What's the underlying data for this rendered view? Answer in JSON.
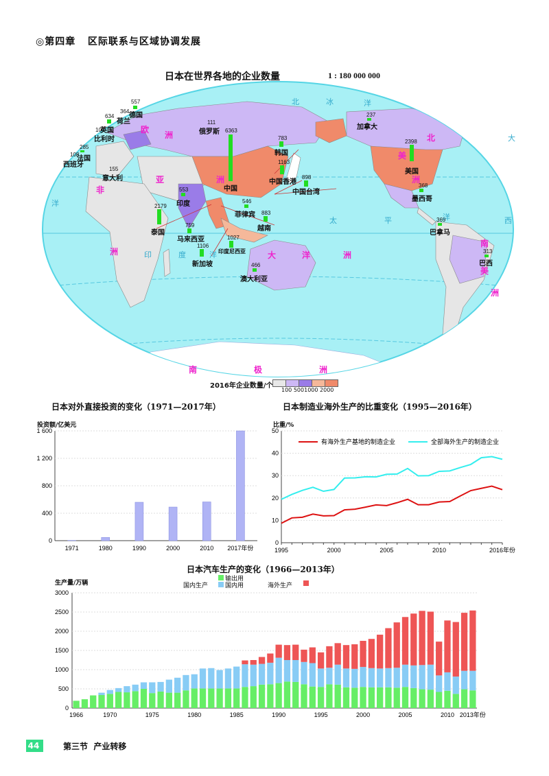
{
  "header": {
    "chapter_marker": "◎",
    "chapter": "第四章",
    "chapter_title": "区际联系与区域协调发展"
  },
  "map": {
    "title": "日本在世界各地的企业数量",
    "scale": "1 : 180 000 000",
    "countries": [
      {
        "name": "德国",
        "value": "557"
      },
      {
        "name": "荷兰",
        "value": "364"
      },
      {
        "name": "英国",
        "value": "634"
      },
      {
        "name": "比利时",
        "value": "104"
      },
      {
        "name": "法国",
        "value": "285"
      },
      {
        "name": "西班牙",
        "value": "108"
      },
      {
        "name": "意大利",
        "value": "155"
      },
      {
        "name": "俄罗斯",
        "value": "111"
      },
      {
        "name": "中国",
        "value": "6363"
      },
      {
        "name": "韩国",
        "value": "783"
      },
      {
        "name": "中国香港",
        "value": "1163"
      },
      {
        "name": "中国台湾",
        "value": "898"
      },
      {
        "name": "印度",
        "value": "553"
      },
      {
        "name": "泰国",
        "value": "2179"
      },
      {
        "name": "菲律宾",
        "value": "546"
      },
      {
        "name": "越南",
        "value": "883"
      },
      {
        "name": "马来西亚",
        "value": "759"
      },
      {
        "name": "印度尼西亚",
        "value": "1027"
      },
      {
        "name": "新加坡",
        "value": "1106"
      },
      {
        "name": "澳大利亚",
        "value": "466"
      },
      {
        "name": "加拿大",
        "value": "237"
      },
      {
        "name": "美国",
        "value": "2398"
      },
      {
        "name": "墨西哥",
        "value": "368"
      },
      {
        "name": "巴拿马",
        "value": "369"
      },
      {
        "name": "巴西",
        "value": "313"
      }
    ],
    "continents": {
      "europe": [
        "欧",
        "洲"
      ],
      "asia": [
        "亚",
        "洲"
      ],
      "africa": [
        "非",
        "洲"
      ],
      "north_america": [
        "北",
        "美",
        "洲"
      ],
      "south_america": [
        "南",
        "美",
        "洲"
      ],
      "oceania": [
        "大",
        "洋",
        "洲"
      ],
      "antarctica": [
        "南",
        "极",
        "洲"
      ]
    },
    "oceans": {
      "arctic": [
        "北",
        "冰",
        "洋"
      ],
      "pacific": [
        "太",
        "平",
        "洋"
      ],
      "atlantic": [
        "大",
        "西",
        "洋"
      ],
      "indian": [
        "印",
        "度",
        "洋"
      ]
    },
    "legend": {
      "label": "2016年企业数量/个",
      "ticks": [
        "100",
        "500",
        "1000",
        "2000"
      ],
      "colors": [
        "#e8e8e8",
        "#cdb8f5",
        "#9a7ce8",
        "#f5b89a",
        "#f08a6a"
      ]
    },
    "colors": {
      "ocean": "#a8f0f5",
      "land": "#e6e6e6",
      "purple": "#cdb8f5",
      "orange": "#f08a6a",
      "bar": "#22dd22"
    }
  },
  "chart_data": [
    {
      "type": "bar",
      "title": "日本对外直接投资的变化（1971—2017年）",
      "ylabel": "投资额/亿美元",
      "xlabel": "年份",
      "categories": [
        "1971",
        "1980",
        "1990",
        "2000",
        "2010",
        "2017"
      ],
      "values": [
        4,
        48,
        560,
        490,
        565,
        1600
      ],
      "ylim": [
        0,
        1600
      ],
      "yticks": [
        "0",
        "400",
        "800",
        "1 200",
        "1 600"
      ],
      "xtick_labels": [
        "1971",
        "1980",
        "1990",
        "2000",
        "2010",
        "2017年份"
      ],
      "bar_color": "#b0b4f5"
    },
    {
      "type": "line",
      "title": "日本制造业海外生产的比重变化（1995—2016年）",
      "ylabel": "比重/%",
      "xlabel": "年份",
      "x": [
        1995,
        1996,
        1997,
        1998,
        1999,
        2000,
        2001,
        2002,
        2003,
        2004,
        2005,
        2006,
        2007,
        2008,
        2009,
        2010,
        2011,
        2012,
        2013,
        2014,
        2015,
        2016
      ],
      "series": [
        {
          "name": "有海外生产基地的制造企业",
          "color": "#dd1111",
          "values": [
            8.7,
            11.1,
            11.4,
            12.8,
            12.0,
            12.1,
            14.7,
            15.0,
            15.9,
            16.9,
            16.6,
            17.9,
            19.4,
            17.0,
            17.0,
            18.2,
            18.4,
            20.9,
            23.3,
            24.3,
            25.3,
            23.7
          ]
        },
        {
          "name": "全部海外生产的制造企业",
          "color": "#33eeee",
          "values": [
            19.4,
            21.6,
            23.4,
            24.8,
            23.0,
            23.8,
            28.9,
            29.0,
            29.5,
            29.4,
            30.6,
            30.7,
            33.2,
            29.9,
            30.0,
            31.9,
            32.1,
            33.6,
            35.0,
            38.0,
            38.5,
            37.3
          ]
        }
      ],
      "ylim": [
        0,
        50
      ],
      "yticks": [
        "0",
        "10",
        "20",
        "30",
        "40",
        "50"
      ],
      "xtick_labels": [
        "1995",
        "2000",
        "2005",
        "2010",
        "2016年份"
      ]
    },
    {
      "type": "bar",
      "stacked": true,
      "title": "日本汽车生产的变化（1966—2013年）",
      "ylabel": "生产量/万辆",
      "xlabel": "年份",
      "legend": {
        "domestic_label": "国内生产",
        "export_label": "输出用",
        "domestic_use_label": "国内用",
        "overseas_label": "海外生产"
      },
      "categories": [
        "1966",
        "1967",
        "1968",
        "1969",
        "1970",
        "1971",
        "1972",
        "1973",
        "1974",
        "1975",
        "1976",
        "1977",
        "1978",
        "1979",
        "1980",
        "1981",
        "1982",
        "1983",
        "1984",
        "1985",
        "1986",
        "1987",
        "1988",
        "1989",
        "1990",
        "1991",
        "1992",
        "1993",
        "1994",
        "1995",
        "1996",
        "1997",
        "1998",
        "1999",
        "2000",
        "2001",
        "2002",
        "2003",
        "2004",
        "2005",
        "2006",
        "2007",
        "2008",
        "2009",
        "2010",
        "2011",
        "2012",
        "2013"
      ],
      "series": [
        {
          "name": "输出用",
          "color": "#66ee66",
          "values": [
            190,
            230,
            330,
            340,
            370,
            420,
            410,
            440,
            500,
            390,
            430,
            400,
            400,
            460,
            510,
            510,
            510,
            510,
            510,
            510,
            550,
            570,
            610,
            620,
            650,
            690,
            680,
            620,
            560,
            550,
            620,
            610,
            540,
            530,
            550,
            540,
            540,
            540,
            530,
            550,
            520,
            490,
            480,
            420,
            450,
            370,
            490,
            460
          ]
        },
        {
          "name": "国内用",
          "color": "#88ccf5",
          "values": [
            0,
            0,
            0,
            60,
            100,
            100,
            160,
            170,
            170,
            280,
            250,
            340,
            390,
            400,
            370,
            520,
            530,
            480,
            520,
            570,
            590,
            560,
            540,
            560,
            660,
            560,
            570,
            580,
            610,
            480,
            430,
            520,
            490,
            490,
            520,
            500,
            490,
            500,
            520,
            580,
            590,
            630,
            650,
            430,
            480,
            450,
            480,
            510
          ]
        },
        {
          "name": "海外生产",
          "color": "#ee5555",
          "values": [
            0,
            0,
            0,
            0,
            0,
            0,
            0,
            0,
            0,
            0,
            0,
            0,
            0,
            0,
            0,
            0,
            0,
            0,
            0,
            0,
            100,
            120,
            180,
            240,
            340,
            390,
            400,
            320,
            410,
            420,
            560,
            560,
            610,
            640,
            680,
            760,
            880,
            1040,
            1180,
            1240,
            1350,
            1410,
            1380,
            880,
            1350,
            1420,
            1510,
            1570
          ]
        }
      ],
      "ylim": [
        0,
        3000
      ],
      "yticks": [
        "0",
        "500",
        "1000",
        "1500",
        "2000",
        "2500",
        "3000"
      ],
      "xtick_labels": [
        "1966",
        "1970",
        "1975",
        "1980",
        "1985",
        "1990",
        "1995",
        "2000",
        "2005",
        "2010",
        "2013年份"
      ]
    }
  ],
  "footer": {
    "page_number": "44",
    "section": "第三节",
    "section_title": "产业转移"
  }
}
